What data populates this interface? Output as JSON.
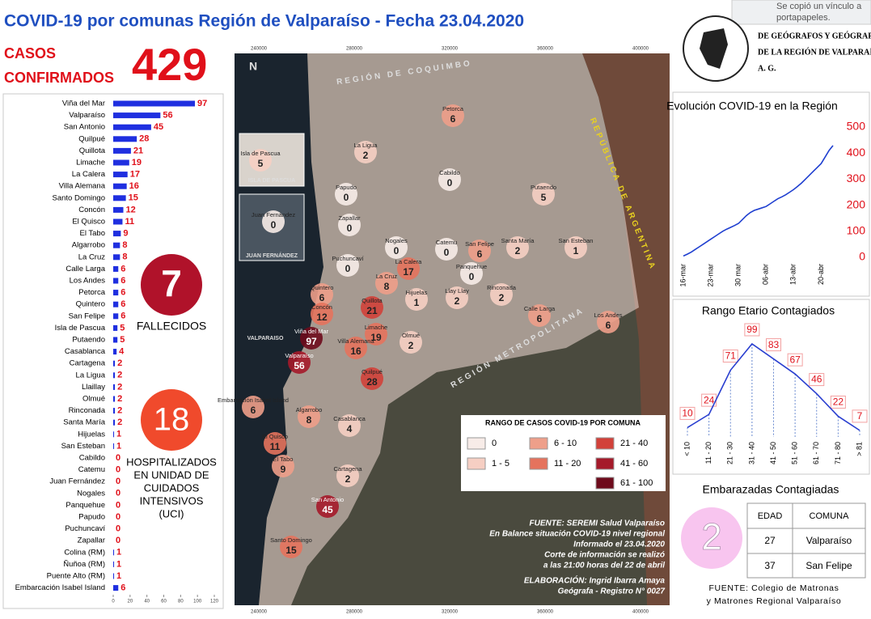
{
  "notification": [
    "Se copió un vínculo a",
    "portapapeles."
  ],
  "header": {
    "title": "COVID-19 por comunas Región de Valparaíso - Fecha 23.04.2020",
    "cases_label": [
      "CASOS",
      "CONFIRMADOS"
    ],
    "cases": "429"
  },
  "logo": {
    "lines": [
      "DE GEÓGRAFOS Y GEÓGRAFAS",
      "DE LA REGIÓN DE VALPARAÍSO",
      "A. G."
    ]
  },
  "stats": {
    "deaths": "7",
    "deaths_label": "FALLECIDOS",
    "icu": "18",
    "icu_label": [
      "HOSPITALIZADOS",
      "EN UNIDAD DE",
      "CUIDADOS",
      "INTENSIVOS",
      "(UCI)"
    ]
  },
  "chart_data": [
    {
      "type": "bar",
      "orientation": "horizontal",
      "color": "#1f2fe0",
      "label_color": "#e0101a",
      "categories": [
        "Viña del Mar",
        "Valparaíso",
        "San Antonio",
        "Quilpué",
        "Quillota",
        "Limache",
        "La Calera",
        "Villa Alemana",
        "Santo Domingo",
        "Concón",
        "El Quisco",
        "El Tabo",
        "Algarrobo",
        "La Cruz",
        "Calle Larga",
        "Los Andes",
        "Petorca",
        "Quintero",
        "San Felipe",
        "Isla de Pascua",
        "Putaendo",
        "Casablanca",
        "Cartagena",
        "La Ligua",
        "Llaillay",
        "Olmué",
        "Rinconada",
        "Santa María",
        "Hijuelas",
        "San Esteban",
        "Cabildo",
        "Catemu",
        "Juan Fernández",
        "Nogales",
        "Panquehue",
        "Papudo",
        "Puchuncaví",
        "Zapallar",
        "Colina (RM)",
        "Ñuñoa (RM)",
        "Puente Alto (RM)",
        "Embarcación Isabel Island"
      ],
      "values": [
        97,
        56,
        45,
        28,
        21,
        19,
        17,
        16,
        15,
        12,
        11,
        9,
        8,
        8,
        6,
        6,
        6,
        6,
        6,
        5,
        5,
        4,
        2,
        2,
        2,
        2,
        2,
        2,
        1,
        1,
        0,
        0,
        0,
        0,
        0,
        0,
        0,
        0,
        1,
        1,
        1,
        6
      ],
      "xlim": [
        0,
        120
      ],
      "xticks": [
        0,
        20,
        40,
        60,
        80,
        100,
        120
      ]
    },
    {
      "type": "line",
      "title": "Evolución COVID-19 en la Región",
      "color": "#1f3fd0",
      "tick_color": "#e0101a",
      "categories": [
        "16-mar",
        null,
        null,
        null,
        null,
        null,
        null,
        "23-mar",
        null,
        null,
        null,
        null,
        null,
        null,
        "30 mar",
        null,
        null,
        null,
        null,
        null,
        null,
        "06-abr",
        null,
        null,
        null,
        null,
        null,
        null,
        "13-abr",
        null,
        null,
        null,
        null,
        null,
        null,
        "20-abr",
        null,
        null,
        null
      ],
      "values": [
        5,
        12,
        20,
        30,
        40,
        50,
        60,
        70,
        80,
        90,
        100,
        108,
        115,
        122,
        130,
        145,
        160,
        172,
        180,
        185,
        190,
        195,
        205,
        215,
        225,
        232,
        240,
        250,
        260,
        272,
        285,
        300,
        315,
        330,
        345,
        360,
        385,
        410,
        429
      ],
      "ylim": [
        0,
        500
      ],
      "yticks": [
        0,
        100,
        200,
        300,
        400,
        500
      ]
    },
    {
      "type": "line",
      "title": "Rango Etario Contagiados",
      "color": "#2a3fd0",
      "data_labels": true,
      "label_color": "#e0101a",
      "categories": [
        "< 10",
        "11 - 20",
        "21 - 30",
        "31 - 40",
        "41 - 50",
        "51 - 60",
        "61 - 70",
        "71 - 80",
        "> 81"
      ],
      "values": [
        10,
        24,
        71,
        99,
        83,
        67,
        46,
        22,
        7
      ]
    }
  ],
  "map": {
    "coords": [
      "240000",
      "280000",
      "320000",
      "360000",
      "400000"
    ],
    "labels": [
      "REGIÓN DE COQUIMBO",
      "REPÚBLICA DE ARGENTINA",
      "REGIÓN METROPOLITANA",
      "VALPARAISO",
      "ISLA DE PASCUA",
      "JUAN FERNÁNDEZ",
      "N"
    ],
    "comunas": [
      {
        "name": "Petorca",
        "value": "6"
      },
      {
        "name": "La Ligua",
        "value": "2"
      },
      {
        "name": "Cabildo",
        "value": "0"
      },
      {
        "name": "Papudo",
        "value": "0"
      },
      {
        "name": "Zapallar",
        "value": "0"
      },
      {
        "name": "Putaendo",
        "value": "5"
      },
      {
        "name": "Nogales",
        "value": "0"
      },
      {
        "name": "Catemu",
        "value": "0"
      },
      {
        "name": "San Felipe",
        "value": "6"
      },
      {
        "name": "Santa María",
        "value": "2"
      },
      {
        "name": "San Esteban",
        "value": "1"
      },
      {
        "name": "Puchuncaví",
        "value": "0"
      },
      {
        "name": "La Cruz",
        "value": "8"
      },
      {
        "name": "La Calera",
        "value": "17"
      },
      {
        "name": "Panquehue",
        "value": "0"
      },
      {
        "name": "Quintero",
        "value": "6"
      },
      {
        "name": "Quillota",
        "value": "21"
      },
      {
        "name": "Hijuelas",
        "value": "1"
      },
      {
        "name": "Llay Llay",
        "value": "2"
      },
      {
        "name": "Rinconada",
        "value": "2"
      },
      {
        "name": "Calle Larga",
        "value": "6"
      },
      {
        "name": "Los Andes",
        "value": "6"
      },
      {
        "name": "Concón",
        "value": "12"
      },
      {
        "name": "Viña del Mar",
        "value": "97"
      },
      {
        "name": "Limache",
        "value": "19"
      },
      {
        "name": "Olmué",
        "value": "2"
      },
      {
        "name": "Villa Alemana",
        "value": "16"
      },
      {
        "name": "Valparaíso",
        "value": "56"
      },
      {
        "name": "Quilpué",
        "value": "28"
      },
      {
        "name": "Embarcación Isabel Island",
        "value": "6"
      },
      {
        "name": "Algarrobo",
        "value": "8"
      },
      {
        "name": "Casablanca",
        "value": "4"
      },
      {
        "name": "El Quisco",
        "value": "11"
      },
      {
        "name": "El Tabo",
        "value": "9"
      },
      {
        "name": "Cartagena",
        "value": "2"
      },
      {
        "name": "San Antonio",
        "value": "45"
      },
      {
        "name": "Santo Domingo",
        "value": "15"
      },
      {
        "name": "Isla de Pascua",
        "value": "5"
      },
      {
        "name": "Juan Fernández",
        "value": "0"
      }
    ],
    "legend": {
      "title": "RANGO DE CASOS COVID-19 POR COMUNA",
      "ranges": [
        {
          "label": "0",
          "max": 0,
          "color": "#f7ece8"
        },
        {
          "label": "1 - 5",
          "max": 5,
          "color": "#f6cfc3"
        },
        {
          "label": "6 - 10",
          "max": 10,
          "color": "#ee9f8a"
        },
        {
          "label": "11 - 20",
          "max": 20,
          "color": "#e5735d"
        },
        {
          "label": "21 - 40",
          "max": 40,
          "color": "#d2413a"
        },
        {
          "label": "41 - 60",
          "max": 60,
          "color": "#a51a2a"
        },
        {
          "label": "61 - 100",
          "max": 100,
          "color": "#6e0b1c"
        }
      ]
    },
    "sources": [
      "FUENTE: SEREMI Salud Valparaíso",
      "En Balance situación COVID-19 nivel regional",
      "Informado el 23.04.2020",
      "Corte de información se realizó",
      "a las 21:00 horas del 22 de abril",
      "ELABORACIÓN: Ingrid Ibarra Amaya",
      "Geógrafa - Registro N° 0027"
    ]
  },
  "pregnant": {
    "title": "Embarazadas Contagiadas",
    "count": "2",
    "columns": [
      "EDAD",
      "COMUNA"
    ],
    "rows": [
      [
        "27",
        "Valparaíso"
      ],
      [
        "37",
        "San Felipe"
      ]
    ],
    "source": [
      "FUENTE: Colegio de Matronas",
      "y Matrones Regional Valparaíso"
    ]
  }
}
